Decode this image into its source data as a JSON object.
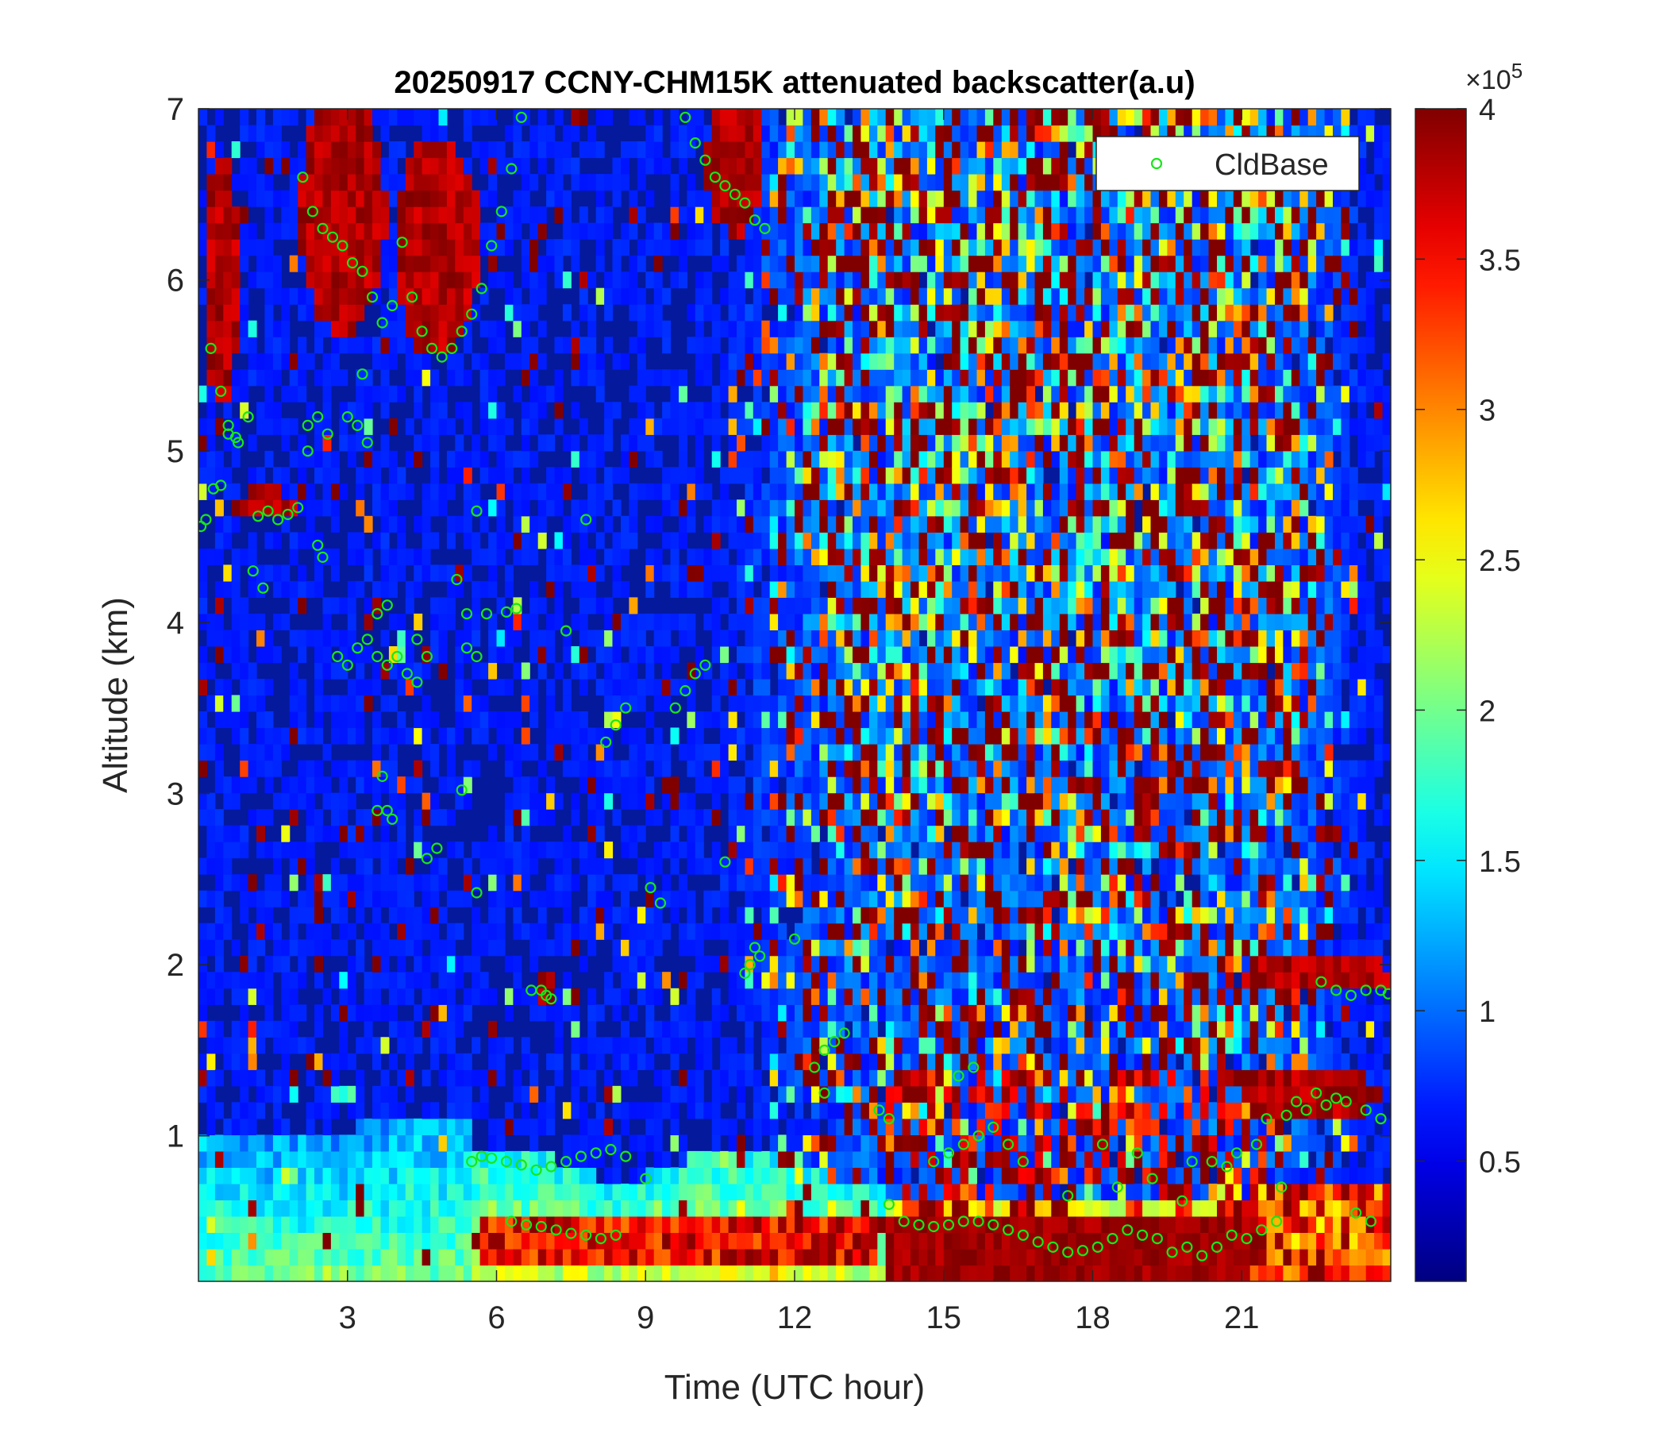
{
  "chart_data": {
    "type": "heatmap",
    "title": "20250917 CCNY-CHM15K attenuated backscatter(a.u)",
    "xlabel": "Time (UTC hour)",
    "ylabel": "Altitude (km)",
    "xlim": [
      0,
      24
    ],
    "ylim": [
      0.15,
      7
    ],
    "x_ticks": [
      3,
      6,
      9,
      12,
      15,
      18,
      21
    ],
    "y_ticks": [
      1,
      2,
      3,
      4,
      5,
      6,
      7
    ],
    "colorbar": {
      "colormap": "jet",
      "range": [
        0.1,
        4.0
      ],
      "ticks": [
        0.5,
        1,
        1.5,
        2,
        2.5,
        3,
        3.5,
        4
      ],
      "ticks_text": [
        "0.5",
        "1",
        "1.5",
        "2",
        "2.5",
        "3",
        "3.5",
        "4"
      ],
      "exponent_base": "×10",
      "exponent_power": "5"
    },
    "legend": {
      "position": "top-right",
      "entries": [
        "CldBase"
      ]
    },
    "colors": {
      "cldbase": "#19e619"
    },
    "cloud_base": {
      "name": "CldBase",
      "x": [
        0.05,
        0.15,
        0.3,
        0.45,
        0.6,
        0.8,
        1.0,
        1.2,
        1.4,
        1.6,
        1.8,
        2.0,
        2.2,
        2.4,
        2.5,
        0.25,
        0.45,
        0.6,
        0.75,
        1.1,
        1.3,
        2.1,
        2.3,
        2.5,
        2.7,
        2.9,
        3.1,
        3.3,
        3.5,
        3.7,
        3.9,
        4.1,
        4.3,
        4.5,
        4.7,
        4.9,
        5.1,
        5.3,
        5.5,
        5.7,
        5.9,
        6.1,
        6.3,
        6.5,
        9.8,
        10.0,
        10.2,
        10.4,
        10.6,
        10.8,
        11.0,
        11.2,
        11.4,
        2.2,
        2.4,
        2.6,
        3.0,
        3.2,
        3.4,
        3.3,
        2.8,
        3.0,
        3.2,
        3.4,
        3.6,
        3.8,
        4.0,
        4.2,
        4.4,
        3.6,
        3.8,
        4.4,
        4.6,
        5.2,
        5.4,
        5.6,
        5.8,
        9.6,
        9.8,
        10.0,
        10.2,
        8.2,
        8.4,
        8.6,
        7.4,
        7.8,
        5.4,
        5.6,
        3.6,
        3.7,
        3.8,
        3.9,
        4.6,
        4.8,
        5.6,
        9.1,
        9.3,
        10.6,
        5.3,
        6.2,
        6.4,
        11.0,
        11.1,
        11.2,
        11.3,
        12.0,
        12.4,
        12.6,
        12.8,
        13.0,
        12.6,
        6.7,
        6.9,
        7.0,
        7.1,
        13.7,
        13.9,
        5.5,
        5.7,
        5.9,
        6.2,
        6.5,
        6.8,
        7.1,
        7.4,
        7.7,
        8.0,
        8.3,
        8.6,
        9.0,
        6.3,
        6.6,
        6.9,
        7.2,
        7.5,
        7.8,
        8.1,
        8.4,
        13.9,
        14.2,
        14.5,
        14.8,
        15.1,
        15.4,
        15.7,
        16.0,
        16.3,
        16.6,
        16.9,
        17.2,
        17.5,
        17.8,
        18.1,
        18.4,
        18.7,
        19.0,
        19.3,
        19.6,
        19.9,
        20.2,
        20.5,
        20.8,
        21.1,
        21.4,
        21.7,
        14.8,
        15.1,
        15.4,
        15.7,
        16.0,
        16.3,
        16.6,
        17.5,
        18.5,
        19.2,
        19.8,
        20.4,
        20.9,
        21.3,
        21.8,
        21.5,
        21.9,
        22.3,
        22.7,
        23.1,
        23.5,
        23.8,
        22.1,
        22.5,
        22.9,
        22.6,
        22.9,
        23.2,
        23.5,
        23.8,
        23.95,
        15.3,
        15.6,
        18.2,
        18.9,
        20.0,
        20.7,
        23.3,
        23.6
      ],
      "y": [
        4.56,
        4.6,
        4.78,
        4.8,
        5.1,
        5.05,
        5.2,
        4.62,
        4.65,
        4.6,
        4.63,
        4.67,
        5.0,
        4.45,
        4.38,
        5.6,
        5.35,
        5.15,
        5.08,
        4.3,
        4.2,
        6.6,
        6.4,
        6.3,
        6.25,
        6.2,
        6.1,
        6.05,
        5.9,
        5.75,
        5.85,
        6.22,
        5.9,
        5.7,
        5.6,
        5.55,
        5.6,
        5.7,
        5.8,
        5.95,
        6.2,
        6.4,
        6.65,
        6.95,
        6.95,
        6.8,
        6.7,
        6.6,
        6.55,
        6.5,
        6.45,
        6.35,
        6.3,
        5.15,
        5.2,
        5.1,
        5.2,
        5.15,
        5.05,
        5.45,
        3.8,
        3.75,
        3.85,
        3.9,
        3.8,
        3.75,
        3.8,
        3.7,
        3.9,
        4.05,
        4.1,
        3.65,
        3.8,
        4.25,
        3.85,
        3.8,
        4.05,
        3.5,
        3.6,
        3.7,
        3.75,
        3.3,
        3.4,
        3.5,
        3.95,
        4.6,
        4.05,
        4.65,
        2.9,
        3.1,
        2.9,
        2.85,
        2.62,
        2.68,
        2.42,
        2.45,
        2.36,
        2.6,
        3.02,
        4.06,
        4.08,
        1.95,
        2.0,
        2.1,
        2.05,
        2.15,
        1.4,
        1.5,
        1.55,
        1.6,
        1.25,
        1.85,
        1.85,
        1.82,
        1.8,
        1.15,
        1.1,
        0.85,
        0.88,
        0.87,
        0.85,
        0.83,
        0.8,
        0.82,
        0.85,
        0.88,
        0.9,
        0.92,
        0.88,
        0.75,
        0.5,
        0.48,
        0.47,
        0.45,
        0.43,
        0.42,
        0.4,
        0.42,
        0.6,
        0.5,
        0.48,
        0.47,
        0.48,
        0.5,
        0.5,
        0.48,
        0.45,
        0.42,
        0.38,
        0.35,
        0.32,
        0.33,
        0.35,
        0.4,
        0.45,
        0.42,
        0.4,
        0.32,
        0.35,
        0.3,
        0.35,
        0.42,
        0.4,
        0.45,
        0.5,
        0.85,
        0.9,
        0.95,
        1.0,
        1.05,
        0.95,
        0.85,
        0.65,
        0.7,
        0.75,
        0.62,
        0.85,
        0.9,
        0.95,
        0.7,
        1.1,
        1.12,
        1.15,
        1.18,
        1.2,
        1.15,
        1.1,
        1.2,
        1.25,
        1.22,
        1.9,
        1.85,
        1.82,
        1.85,
        1.85,
        1.83,
        1.35,
        1.4,
        0.95,
        0.9,
        0.85,
        0.82,
        0.55,
        0.5
      ]
    }
  }
}
